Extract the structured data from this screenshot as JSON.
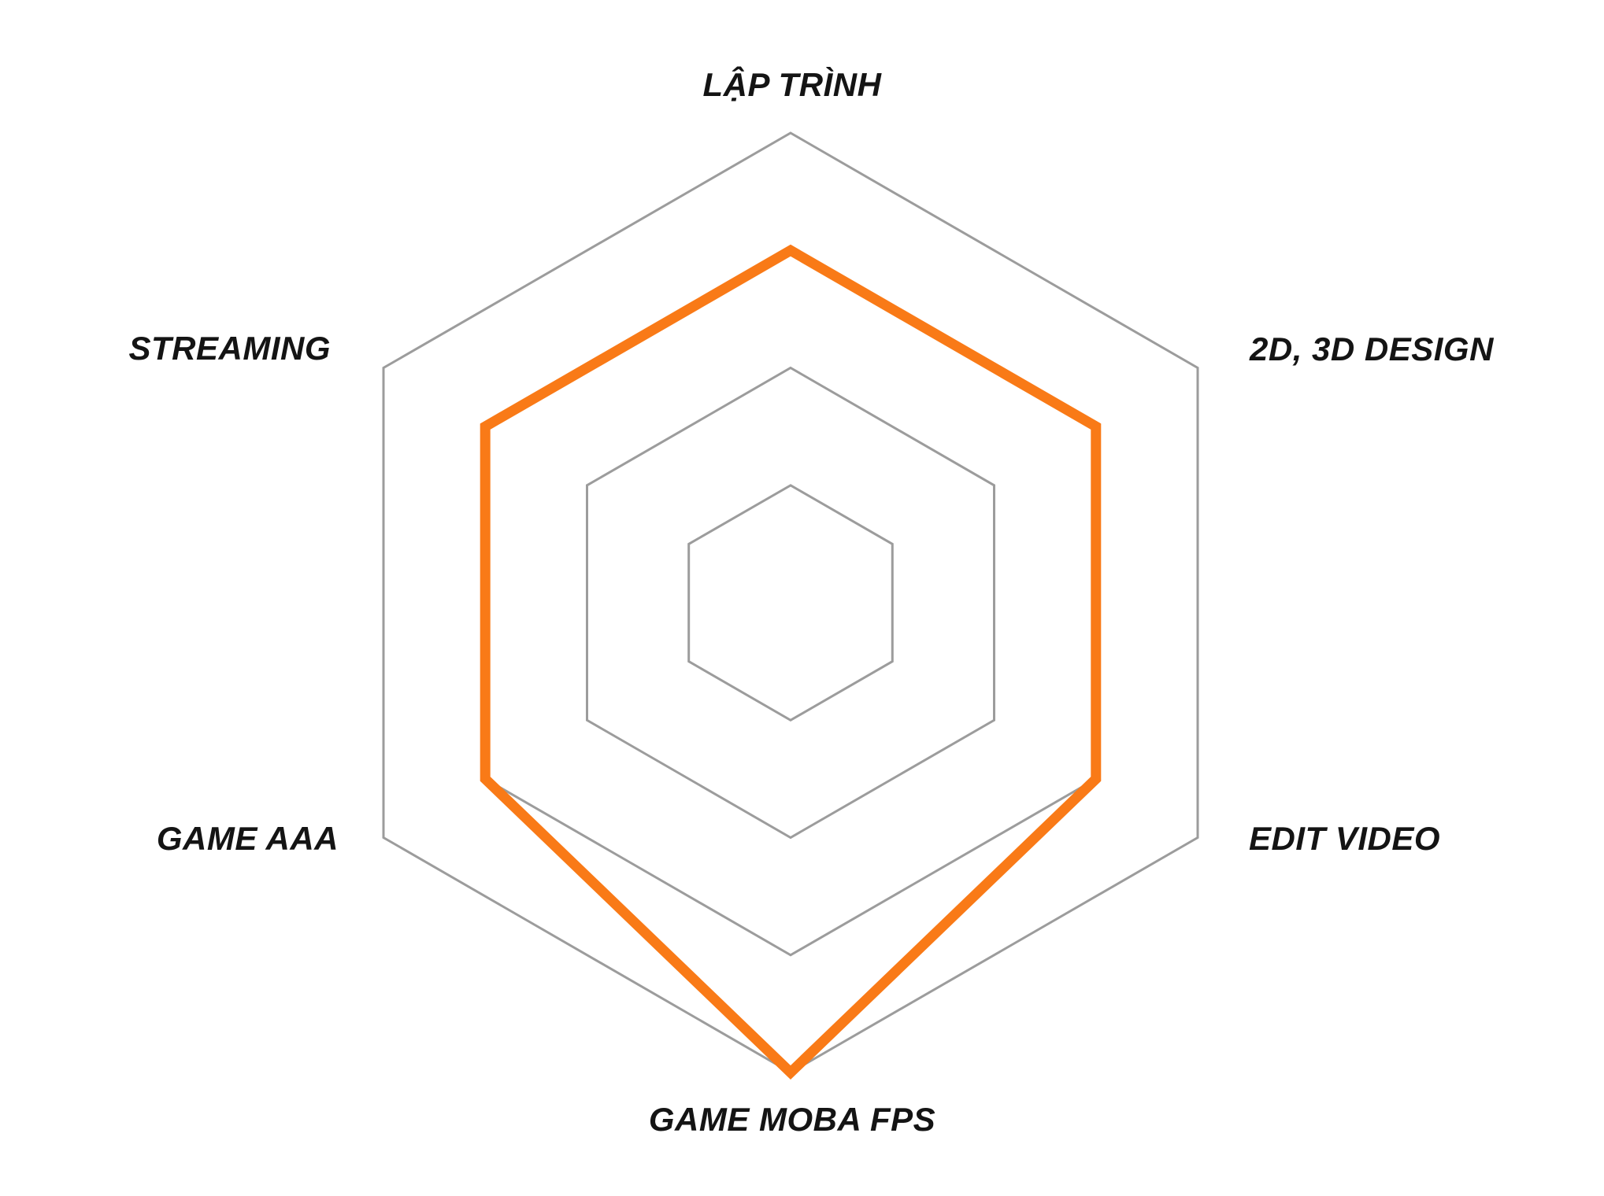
{
  "page": {
    "background": "#ffffff"
  },
  "chart_data": {
    "type": "radar",
    "title": "",
    "categories": [
      "LẬP TRÌNH",
      "2D, 3D DESIGN",
      "EDIT VIDEO",
      "GAME MOBA FPS",
      "GAME AAA",
      "STREAMING"
    ],
    "series": [
      {
        "values": [
          75,
          75,
          75,
          100,
          75,
          75
        ]
      }
    ],
    "axis_order": "clockwise-from-top",
    "rings": [
      25,
      50,
      75,
      100
    ],
    "max": 100,
    "grid": true,
    "legend": false,
    "grid_color": "#9c9c9c",
    "series_color": "#f97a17",
    "label_color": "#141414",
    "background": "#ffffff"
  }
}
